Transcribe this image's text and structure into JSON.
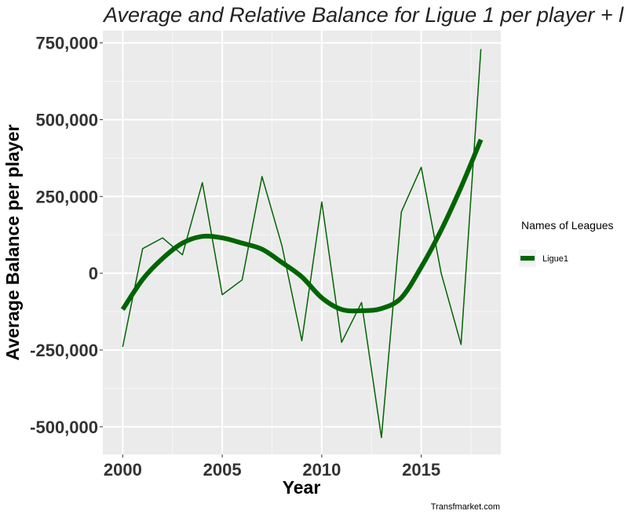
{
  "chart_data": {
    "type": "line",
    "title": "Average and Relative  Balance for Ligue 1  per player + l",
    "xlabel": "Year",
    "ylabel": "Average Balance  per player",
    "xlim": [
      1999,
      2019
    ],
    "ylim": [
      -590000,
      790000
    ],
    "x_ticks": [
      2000,
      2005,
      2010,
      2015
    ],
    "x_tick_labels": [
      "2000",
      "2005",
      "2010",
      "2015"
    ],
    "y_ticks": [
      -500000,
      -250000,
      0,
      250000,
      500000,
      750000
    ],
    "y_tick_labels": [
      "-500,000",
      "-250,000",
      "0",
      "250,000",
      "500,000",
      "750,000"
    ],
    "grid": true,
    "legend": {
      "title": "Names of Leagues",
      "position": "right",
      "entries": [
        {
          "label": "Ligue1",
          "color": "#006400"
        }
      ]
    },
    "caption": "Transfmarket.com",
    "series": [
      {
        "name": "Ligue1",
        "style": "thin",
        "color": "#006400",
        "x": [
          2000,
          2001,
          2002,
          2003,
          2004,
          2005,
          2006,
          2007,
          2008,
          2009,
          2010,
          2011,
          2012,
          2013,
          2014,
          2015,
          2016,
          2017,
          2018
        ],
        "y": [
          -240000,
          80000,
          115000,
          60000,
          295000,
          -70000,
          -22000,
          315000,
          90000,
          -220000,
          232000,
          -225000,
          -95000,
          -535000,
          200000,
          345000,
          0,
          -232000,
          730000
        ]
      },
      {
        "name": "Ligue1",
        "style": "smooth",
        "color": "#006400",
        "x": [
          2000,
          2001,
          2002,
          2003,
          2004,
          2005,
          2006,
          2007,
          2008,
          2009,
          2010,
          2011,
          2012,
          2013,
          2014,
          2015,
          2016,
          2017,
          2018
        ],
        "y": [
          -118000,
          -20000,
          48000,
          98000,
          120000,
          115000,
          98000,
          78000,
          35000,
          -12000,
          -80000,
          -118000,
          -122000,
          -115000,
          -80000,
          20000,
          140000,
          280000,
          435000
        ]
      }
    ]
  }
}
